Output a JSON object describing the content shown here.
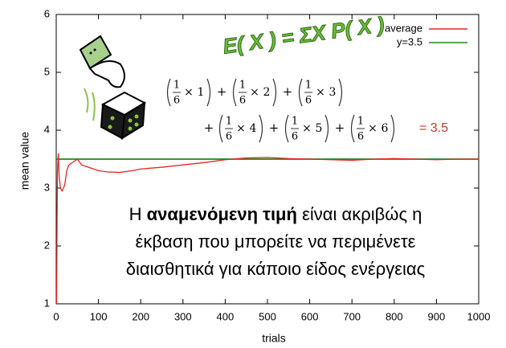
{
  "chart_data": {
    "type": "line",
    "xlabel": "trials",
    "ylabel": "mean value",
    "xlim": [
      0,
      1000
    ],
    "ylim": [
      1,
      6
    ],
    "xticks": [
      0,
      100,
      200,
      300,
      400,
      500,
      600,
      700,
      800,
      900,
      1000
    ],
    "yticks": [
      1,
      2,
      3,
      4,
      5,
      6
    ],
    "legend_position": "upper right",
    "series": [
      {
        "name": "average",
        "color": "#e8251f",
        "x": [
          1,
          2,
          3,
          5,
          7,
          10,
          14,
          20,
          25,
          30,
          40,
          50,
          60,
          80,
          100,
          120,
          150,
          180,
          200,
          250,
          300,
          350,
          400,
          450,
          500,
          550,
          600,
          650,
          700,
          750,
          800,
          850,
          900,
          950,
          1000
        ],
        "values": [
          1,
          2.5,
          3.3,
          3.6,
          3.2,
          3.0,
          2.95,
          3.05,
          3.3,
          3.4,
          3.45,
          3.5,
          3.4,
          3.35,
          3.3,
          3.28,
          3.27,
          3.3,
          3.33,
          3.36,
          3.4,
          3.44,
          3.49,
          3.52,
          3.53,
          3.51,
          3.5,
          3.49,
          3.48,
          3.5,
          3.51,
          3.5,
          3.49,
          3.5,
          3.5
        ]
      },
      {
        "name": "y=3.5",
        "color": "#1a8a1a",
        "x": [
          0,
          1000
        ],
        "values": [
          3.5,
          3.5
        ]
      }
    ],
    "annotations": {
      "heading": "E( X ) = ΣX P( X )",
      "operator": "+",
      "times": "×",
      "terms": [
        {
          "num": "1",
          "den": "6",
          "factor": "1"
        },
        {
          "num": "1",
          "den": "6",
          "factor": "2"
        },
        {
          "num": "1",
          "den": "6",
          "factor": "3"
        },
        {
          "num": "1",
          "den": "6",
          "factor": "4"
        },
        {
          "num": "1",
          "den": "6",
          "factor": "5"
        },
        {
          "num": "1",
          "den": "6",
          "factor": "6"
        }
      ],
      "result": "= 3.5",
      "caption": [
        [
          {
            "text": "Η ",
            "bold": false
          },
          {
            "text": "αναμενόμενη τιμή",
            "bold": true
          },
          {
            "text": " είναι ακριβώς η",
            "bold": false
          }
        ],
        [
          {
            "text": "έκβαση που μπορείτε να περιμένετε",
            "bold": false
          }
        ],
        [
          {
            "text": "διαισθητικά για κάποιο είδος ενέργειας",
            "bold": false
          }
        ]
      ]
    }
  }
}
